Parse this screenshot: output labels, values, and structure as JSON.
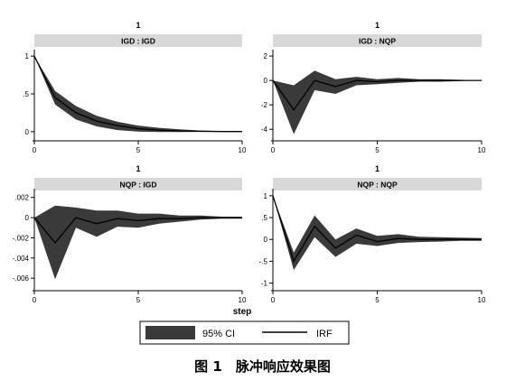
{
  "caption": "图 1　脉冲响应效果图",
  "x_axis_label": "step",
  "legend": {
    "ci_label": "95% CI",
    "irf_label": "IRF"
  },
  "colors": {
    "ci_fill": "#3a3a3a",
    "irf_line": "#000000",
    "strip_bg": "#d8d8d8"
  },
  "chart_data": [
    {
      "type": "line",
      "title": "1",
      "subtitle": "IGD : IGD",
      "x": [
        0,
        1,
        2,
        3,
        4,
        5,
        6,
        7,
        8,
        9,
        10
      ],
      "series": [
        {
          "name": "IRF",
          "values": [
            1.0,
            0.45,
            0.25,
            0.14,
            0.08,
            0.04,
            0.02,
            0.01,
            0.005,
            0.002,
            0.001
          ]
        },
        {
          "name": "95% CI",
          "lower": [
            1.0,
            0.36,
            0.16,
            0.07,
            0.02,
            0.0,
            -0.005,
            -0.005,
            -0.003,
            -0.002,
            -0.001
          ],
          "upper": [
            1.0,
            0.54,
            0.34,
            0.21,
            0.13,
            0.08,
            0.05,
            0.03,
            0.015,
            0.008,
            0.004
          ]
        }
      ],
      "xticks": [
        0,
        5,
        10
      ],
      "xlim": [
        0,
        10
      ],
      "yticks": [
        0,
        0.5,
        1
      ],
      "ytick_labels": [
        "0",
        ".5",
        "1"
      ],
      "ylim": [
        -0.05,
        1.05
      ]
    },
    {
      "type": "line",
      "title": "1",
      "subtitle": "IGD : NQP",
      "x": [
        0,
        1,
        2,
        3,
        4,
        5,
        6,
        7,
        8,
        9,
        10
      ],
      "series": [
        {
          "name": "IRF",
          "values": [
            0,
            -2.4,
            0.0,
            -0.5,
            0.0,
            -0.1,
            0.0,
            0.0,
            0.0,
            0.0,
            0.0
          ]
        },
        {
          "name": "95% CI",
          "lower": [
            0,
            -4.4,
            -0.8,
            -1.1,
            -0.4,
            -0.3,
            -0.2,
            -0.1,
            -0.1,
            -0.05,
            0.0
          ],
          "upper": [
            0,
            -0.4,
            0.8,
            0.1,
            0.3,
            0.1,
            0.2,
            0.1,
            0.1,
            0.05,
            0.0
          ]
        }
      ],
      "xticks": [
        0,
        5,
        10
      ],
      "xlim": [
        0,
        10
      ],
      "yticks": [
        -4,
        -2,
        0,
        2
      ],
      "ytick_labels": [
        "-4",
        "-2",
        "0",
        "2"
      ],
      "ylim": [
        -4.5,
        2.3
      ]
    },
    {
      "type": "line",
      "title": "1",
      "subtitle": "NQP : IGD",
      "x": [
        0,
        1,
        2,
        3,
        4,
        5,
        6,
        7,
        8,
        9,
        10
      ],
      "series": [
        {
          "name": "IRF",
          "values": [
            0,
            -0.0025,
            0.0,
            -0.0006,
            -0.0001,
            -0.0003,
            -0.0001,
            -0.0001,
            0.0,
            0.0,
            0.0
          ]
        },
        {
          "name": "95% CI",
          "lower": [
            0,
            -0.0061,
            -0.001,
            -0.0019,
            -0.0009,
            -0.001,
            -0.0006,
            -0.0004,
            -0.0002,
            -0.0001,
            -0.0001
          ],
          "upper": [
            0,
            0.0012,
            0.001,
            0.0007,
            0.0007,
            0.0004,
            0.0004,
            0.0002,
            0.0002,
            0.0001,
            0.0001
          ]
        }
      ],
      "xticks": [
        0,
        5,
        10
      ],
      "xlim": [
        0,
        10
      ],
      "yticks": [
        -0.006,
        -0.004,
        -0.002,
        0,
        0.002
      ],
      "ytick_labels": [
        "-.006",
        "-.004",
        "-.002",
        "0",
        ".002"
      ],
      "ylim": [
        -0.0067,
        0.0026
      ]
    },
    {
      "type": "line",
      "title": "1",
      "subtitle": "NQP : NQP",
      "x": [
        0,
        1,
        2,
        3,
        4,
        5,
        6,
        7,
        8,
        9,
        10
      ],
      "series": [
        {
          "name": "IRF",
          "values": [
            1.0,
            -0.5,
            0.3,
            -0.2,
            0.1,
            -0.05,
            0.02,
            0.0,
            0.0,
            0.0,
            0.0
          ]
        },
        {
          "name": "95% CI",
          "lower": [
            1.0,
            -0.7,
            0.05,
            -0.4,
            -0.1,
            -0.15,
            -0.08,
            -0.06,
            -0.05,
            -0.03,
            -0.03
          ],
          "upper": [
            1.0,
            -0.3,
            0.55,
            0.0,
            0.25,
            0.08,
            0.12,
            0.06,
            0.05,
            0.04,
            0.03
          ]
        }
      ],
      "xticks": [
        0,
        5,
        10
      ],
      "xlim": [
        0,
        10
      ],
      "yticks": [
        -1,
        -0.5,
        0,
        0.5,
        1
      ],
      "ytick_labels": [
        "-1",
        "-.5",
        "0",
        ".5",
        "1"
      ],
      "ylim": [
        -1.05,
        1.1
      ]
    }
  ]
}
